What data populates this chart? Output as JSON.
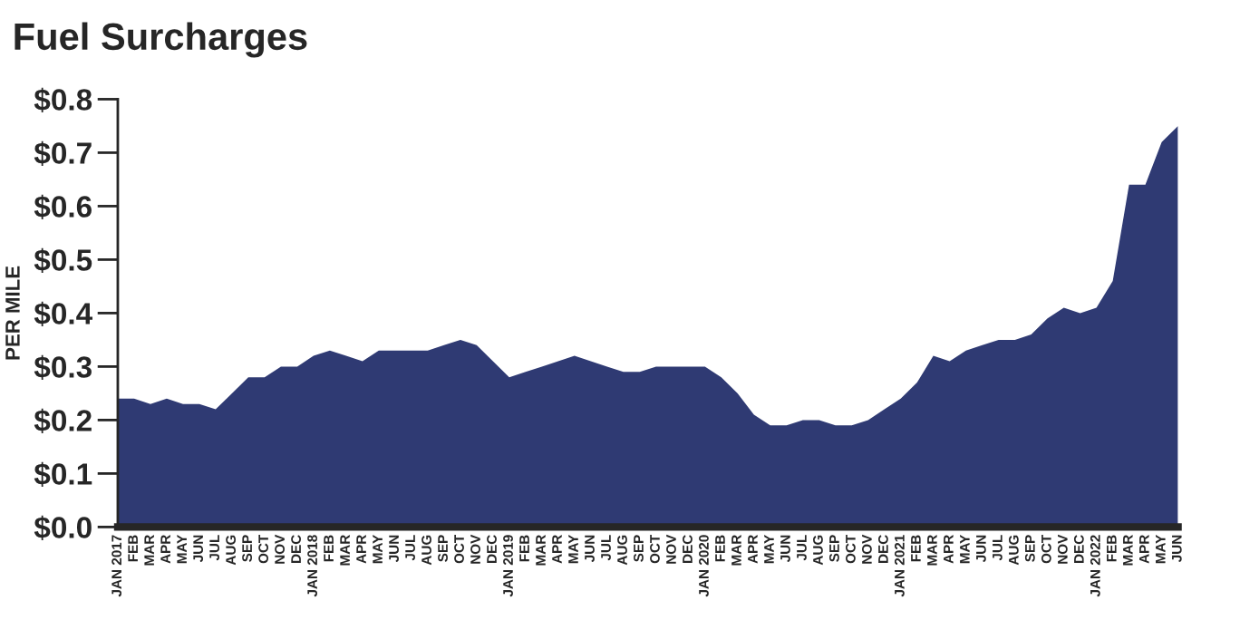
{
  "chart_data": {
    "type": "area",
    "title": "Fuel Surcharges",
    "ylabel": "PER MILE",
    "categories": [
      "JAN 2017",
      "FEB",
      "MAR",
      "APR",
      "MAY",
      "JUN",
      "JUL",
      "AUG",
      "SEP",
      "OCT",
      "NOV",
      "DEC",
      "JAN 2018",
      "FEB",
      "MAR",
      "APR",
      "MAY",
      "JUN",
      "JUL",
      "AUG",
      "SEP",
      "OCT",
      "NOV",
      "DEC",
      "JAN 2019",
      "FEB",
      "MAR",
      "APR",
      "MAY",
      "JUN",
      "JUL",
      "AUG",
      "SEP",
      "OCT",
      "NOV",
      "DEC",
      "JAN 2020",
      "FEB",
      "MAR",
      "APR",
      "MAY",
      "JUN",
      "JUL",
      "AUG",
      "SEP",
      "OCT",
      "NOV",
      "DEC",
      "JAN 2021",
      "FEB",
      "MAR",
      "APR",
      "MAY",
      "JUN",
      "JUL",
      "AUG",
      "SEP",
      "OCT",
      "NOV",
      "DEC",
      "JAN 2022",
      "FEB",
      "MAR",
      "APR",
      "MAY",
      "JUN"
    ],
    "series": [
      {
        "color": "#2f3a73",
        "values": [
          0.24,
          0.24,
          0.23,
          0.24,
          0.23,
          0.23,
          0.22,
          0.25,
          0.28,
          0.28,
          0.3,
          0.3,
          0.32,
          0.33,
          0.32,
          0.31,
          0.33,
          0.33,
          0.33,
          0.33,
          0.34,
          0.35,
          0.34,
          0.31,
          0.28,
          0.29,
          0.3,
          0.31,
          0.32,
          0.31,
          0.3,
          0.29,
          0.29,
          0.3,
          0.3,
          0.3,
          0.3,
          0.28,
          0.25,
          0.21,
          0.19,
          0.19,
          0.2,
          0.2,
          0.19,
          0.19,
          0.2,
          0.22,
          0.24,
          0.27,
          0.32,
          0.31,
          0.33,
          0.34,
          0.35,
          0.35,
          0.36,
          0.39,
          0.41,
          0.4,
          0.41,
          0.46,
          0.64,
          0.64,
          0.72,
          0.75
        ]
      }
    ],
    "ylim": [
      0,
      0.8
    ],
    "yticks": [
      {
        "value": 0,
        "label": "$0.0"
      },
      {
        "value": 0.1,
        "label": "$0.1"
      },
      {
        "value": 0.2,
        "label": "$0.2"
      },
      {
        "value": 0.3,
        "label": "$0.3"
      },
      {
        "value": 0.4,
        "label": "$0.4"
      },
      {
        "value": 0.5,
        "label": "$0.5"
      },
      {
        "value": 0.6,
        "label": "$0.6"
      },
      {
        "value": 0.7,
        "label": "$0.7"
      },
      {
        "value": 0.8,
        "label": "$0.8"
      }
    ],
    "grid": false,
    "legend": false
  }
}
